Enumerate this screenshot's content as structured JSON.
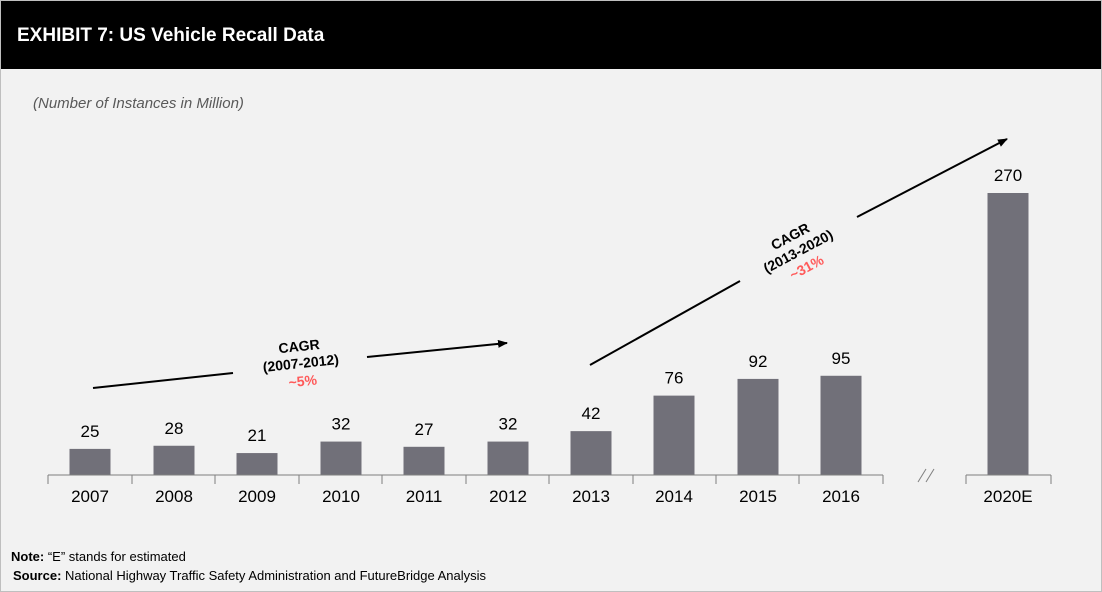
{
  "title": "EXHIBIT 7: US Vehicle Recall Data",
  "chart_data": {
    "type": "bar",
    "title": "EXHIBIT 7: US Vehicle Recall Data",
    "subtitle": "(Number of Instances in Million)",
    "categories": [
      "2007",
      "2008",
      "2009",
      "2010",
      "2011",
      "2012",
      "2013",
      "2014",
      "2015",
      "2016",
      "2020E"
    ],
    "values": [
      25,
      28,
      21,
      32,
      27,
      32,
      42,
      76,
      92,
      95,
      270
    ],
    "ylim": [
      0,
      270
    ],
    "grid": false,
    "legend": "none",
    "axis_break_after": "2016",
    "annotations": [
      {
        "label": "CAGR",
        "period": "(2007-2012)",
        "value": "~5%"
      },
      {
        "label": "CAGR",
        "period": "(2013-2020)",
        "value": "~31%"
      }
    ]
  },
  "colors": {
    "bar": "#717079",
    "cagr_value": "#ff5a5a",
    "header": "#000000",
    "background": "#f2f2f2"
  },
  "footer": {
    "note_label": "Note:",
    "note_text": " “E” stands for estimated",
    "source_label": "Source:",
    "source_text": " National Highway Traffic Safety Administration and FutureBridge Analysis"
  }
}
